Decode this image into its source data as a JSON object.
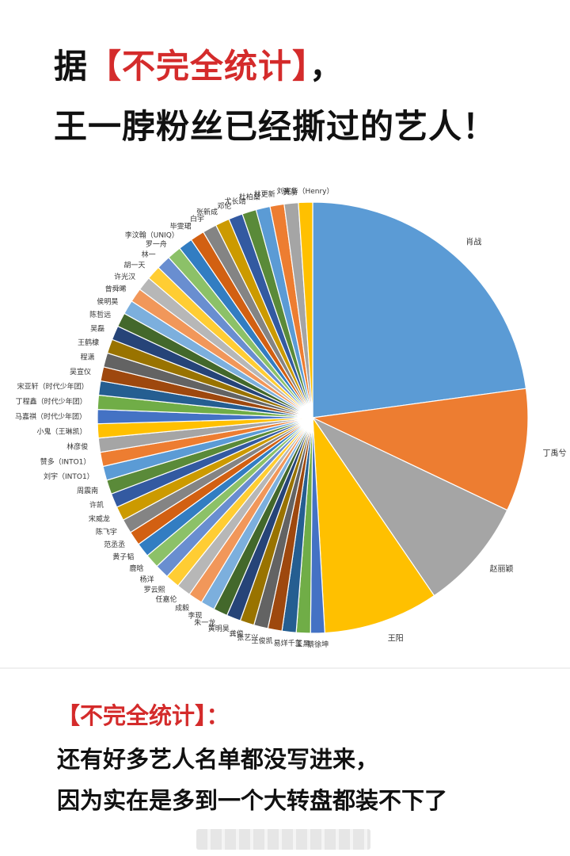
{
  "headline": {
    "line1_prefix": "据",
    "line1_highlight": "【不完全统计】",
    "line1_suffix": "，",
    "line2": "王一脖粉丝已经撕过的艺人！"
  },
  "note": {
    "title": "【不完全统计】：",
    "line1": "还有好多艺人名单都没写进来，",
    "line2": "因为实在是多到一个大转盘都装不下了"
  },
  "chart_data": {
    "type": "pie",
    "title": "",
    "labels": [
      "肖战",
      "丁禹兮",
      "赵丽颖",
      "王阳",
      "蔡徐坤",
      "王黑",
      "易烊千玺",
      "王俊凯",
      "张艺兴",
      "龚俊",
      "黄明昊",
      "朱一龙",
      "李现",
      "成毅",
      "任嘉伦",
      "罗云熙",
      "杨洋",
      "鹿晗",
      "黄子韬",
      "范丞丞",
      "陈飞宇",
      "宋威龙",
      "许凯",
      "周震南",
      "刘宇（INTO1）",
      "赞多（INTO1）",
      "林彦俊",
      "小鬼（王琳凯）",
      "马嘉祺（时代少年团）",
      "丁程鑫（时代少年团）",
      "宋亚轩（时代少年团）",
      "吴宣仪",
      "程潇",
      "王鹤棣",
      "吴磊",
      "陈哲远",
      "侯明昊",
      "曾舜晞",
      "许光汉",
      "胡一天",
      "林一",
      "罗一舟",
      "李汶翰（UNIQ）",
      "毕雯珺",
      "白宇",
      "张新成",
      "邓伦",
      "尤长靖",
      "杜柏燊",
      "林更新",
      "黄渤",
      "刘宪华（Henry）"
    ],
    "values": [
      28,
      11.3,
      10.3,
      10.6,
      1.3,
      1.3,
      1.3,
      1.3,
      1.3,
      1.3,
      1.3,
      1.3,
      1.3,
      1.3,
      1.3,
      1.3,
      1.3,
      1.3,
      1.3,
      1.3,
      1.3,
      1.3,
      1.3,
      1.3,
      1.3,
      1.3,
      1.3,
      1.3,
      1.3,
      1.3,
      1.3,
      1.3,
      1.3,
      1.3,
      1.3,
      1.3,
      1.3,
      1.3,
      1.3,
      1.3,
      1.3,
      1.3,
      1.3,
      1.3,
      1.3,
      1.3,
      1.3,
      1.3,
      1.3,
      1.3,
      1.3,
      1.3
    ],
    "palette": [
      "#5b9bd5",
      "#ed7d31",
      "#a5a5a5",
      "#ffc000",
      "#4472c4",
      "#70ad47",
      "#255e91",
      "#9e480e",
      "#636363",
      "#997300",
      "#264478",
      "#43682b",
      "#7cafdd",
      "#f1975a",
      "#b7b7b7",
      "#ffcd33",
      "#698ed0",
      "#8cc168",
      "#327dc2",
      "#d26012",
      "#848484",
      "#cc9a00",
      "#335aa1",
      "#5a8a39"
    ],
    "legend": "none",
    "label_position": "outside"
  }
}
